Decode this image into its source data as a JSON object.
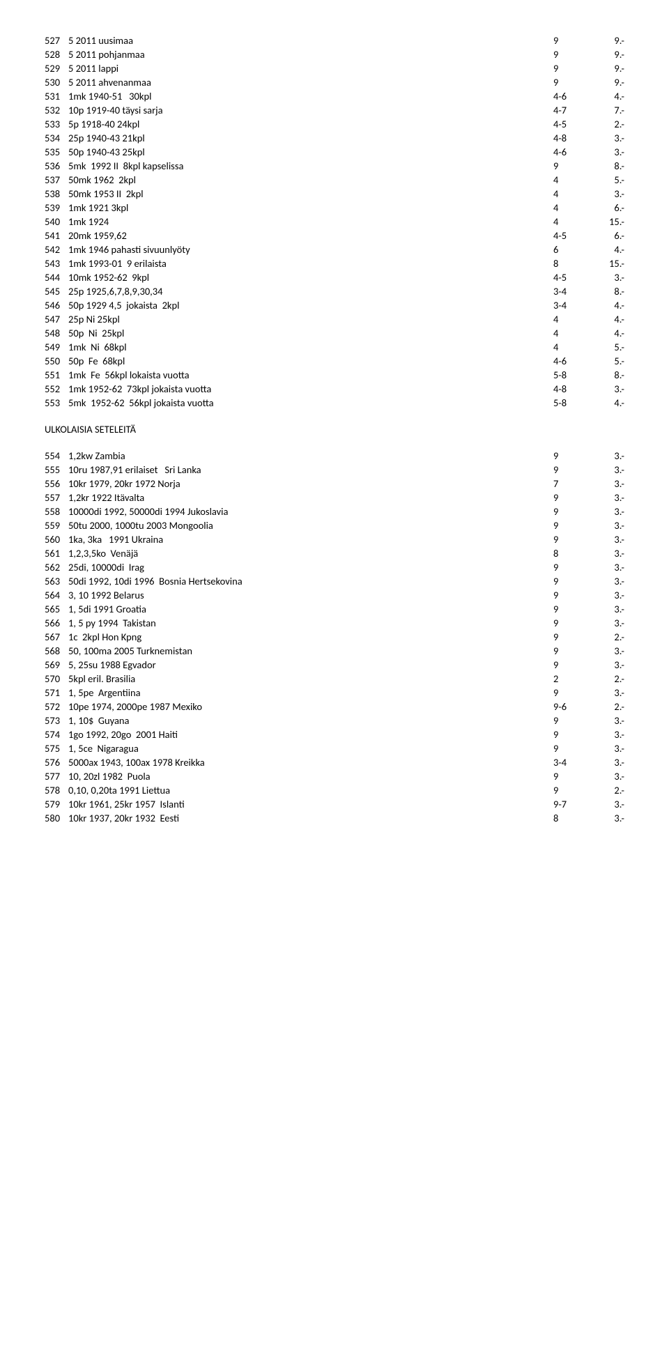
{
  "rows1": [
    {
      "n": "527",
      "d": "5 2011 uusimaa",
      "g": "9",
      "p": "9.-"
    },
    {
      "n": "528",
      "d": "5 2011 pohjanmaa",
      "g": "9",
      "p": "9.-"
    },
    {
      "n": "529",
      "d": "5 2011 lappi",
      "g": "9",
      "p": "9.-"
    },
    {
      "n": "530",
      "d": "5 2011 ahvenanmaa",
      "g": "9",
      "p": "9.-"
    },
    {
      "n": "531",
      "d": "1mk 1940-51   30kpl",
      "g": "4-6",
      "p": "4.-"
    },
    {
      "n": "532",
      "d": "10p 1919-40 täysi sarja",
      "g": "4-7",
      "p": "7.-"
    },
    {
      "n": "533",
      "d": "5p 1918-40 24kpl",
      "g": "4-5",
      "p": "2.-"
    },
    {
      "n": "534",
      "d": "25p 1940-43 21kpl",
      "g": "4-8",
      "p": "3.-"
    },
    {
      "n": "535",
      "d": "50p 1940-43 25kpl",
      "g": "4-6",
      "p": "3.-"
    },
    {
      "n": "536",
      "d": "5mk  1992 II  8kpl kapselissa",
      "g": "9",
      "p": "8.-"
    },
    {
      "n": "537",
      "d": "50mk 1962  2kpl",
      "g": "4",
      "p": "5.-"
    },
    {
      "n": "538",
      "d": "50mk 1953 II  2kpl",
      "g": "4",
      "p": "3.-"
    },
    {
      "n": "539",
      "d": "1mk 1921 3kpl",
      "g": "4",
      "p": "6.-"
    },
    {
      "n": "540",
      "d": "1mk 1924",
      "g": "4",
      "p": "15.-"
    },
    {
      "n": "541",
      "d": "20mk 1959,62",
      "g": "4-5",
      "p": "6.-"
    },
    {
      "n": "542",
      "d": "1mk 1946 pahasti sivuunlyöty",
      "g": "6",
      "p": "4.-"
    },
    {
      "n": "543",
      "d": "1mk 1993-01  9 erilaista",
      "g": "8",
      "p": "15.-"
    },
    {
      "n": "544",
      "d": "10mk 1952-62  9kpl",
      "g": "4-5",
      "p": "3.-"
    },
    {
      "n": "545",
      "d": "25p 1925,6,7,8,9,30,34",
      "g": "3-4",
      "p": "8.-"
    },
    {
      "n": "546",
      "d": "50p 1929 4,5  jokaista  2kpl",
      "g": "3-4",
      "p": "4.-"
    },
    {
      "n": "547",
      "d": "25p Ni 25kpl",
      "g": "4",
      "p": "4.-"
    },
    {
      "n": "548",
      "d": "50p  Ni  25kpl",
      "g": "4",
      "p": "4.-"
    },
    {
      "n": "549",
      "d": "1mk  Ni  68kpl",
      "g": "4",
      "p": "5.-"
    },
    {
      "n": "550",
      "d": "50p  Fe  68kpl",
      "g": "4-6",
      "p": "5.-"
    },
    {
      "n": "551",
      "d": "1mk  Fe  56kpl lokaista vuotta",
      "g": "5-8",
      "p": "8.-"
    },
    {
      "n": "552",
      "d": "1mk 1952-62  73kpl jokaista vuotta",
      "g": "4-8",
      "p": "3.-"
    },
    {
      "n": "553",
      "d": "5mk  1952-62  56kpl jokaista vuotta",
      "g": "5-8",
      "p": "4.-"
    }
  ],
  "sectionTitle": "ULKOLAISIA SETELEITÄ",
  "rows2": [
    {
      "n": "554",
      "d": "1,2kw Zambia",
      "g": "9",
      "p": "3.-"
    },
    {
      "n": "555",
      "d": "10ru 1987,91 erilaiset   Sri Lanka",
      "g": "9",
      "p": "3.-"
    },
    {
      "n": "556",
      "d": "10kr 1979, 20kr 1972 Norja",
      "g": "7",
      "p": "3.-"
    },
    {
      "n": "557",
      "d": "1,2kr 1922 Itävalta",
      "g": "9",
      "p": "3.-"
    },
    {
      "n": "558",
      "d": "10000di 1992, 50000di 1994 Jukoslavia",
      "g": "9",
      "p": "3.-"
    },
    {
      "n": "559",
      "d": "50tu 2000, 1000tu 2003 Mongoolia",
      "g": "9",
      "p": "3.-"
    },
    {
      "n": "560",
      "d": "1ka, 3ka   1991 Ukraina",
      "g": "9",
      "p": "3.-"
    },
    {
      "n": "561",
      "d": "1,2,3,5ko  Venäjä",
      "g": "8",
      "p": "3.-"
    },
    {
      "n": "562",
      "d": "25di, 10000di  Irag",
      "g": "9",
      "p": "3.-"
    },
    {
      "n": "563",
      "d": "50di 1992, 10di 1996  Bosnia Hertsekovina",
      "g": "9",
      "p": "3.-"
    },
    {
      "n": "564",
      "d": "3, 10 1992 Belarus",
      "g": "9",
      "p": "3.-"
    },
    {
      "n": "565",
      "d": "1, 5di 1991 Groatia",
      "g": "9",
      "p": "3.-"
    },
    {
      "n": "566",
      "d": "1, 5 py 1994  Takistan",
      "g": "9",
      "p": "3.-"
    },
    {
      "n": "567",
      "d": "1c  2kpl Hon Kpng",
      "g": "9",
      "p": "2.-"
    },
    {
      "n": "568",
      "d": "50, 100ma 2005 Turknemistan",
      "g": "9",
      "p": "3.-"
    },
    {
      "n": "569",
      "d": "5, 25su 1988 Egvador",
      "g": "9",
      "p": "3.-"
    },
    {
      "n": "570",
      "d": "5kpl eril. Brasilia",
      "g": "2",
      "p": "2.-"
    },
    {
      "n": "571",
      "d": "1, 5pe  Argentiina",
      "g": "9",
      "p": "3.-"
    },
    {
      "n": "572",
      "d": "10pe 1974, 2000pe 1987 Mexiko",
      "g": "9-6",
      "p": "2.-"
    },
    {
      "n": "573",
      "d": "1, 10$  Guyana",
      "g": "9",
      "p": "3.-"
    },
    {
      "n": "574",
      "d": "1go 1992, 20go  2001 Haiti",
      "g": "9",
      "p": "3.-"
    },
    {
      "n": "575",
      "d": "1, 5ce  Nigaragua",
      "g": "9",
      "p": "3.-"
    },
    {
      "n": "576",
      "d": "5000ax 1943, 100ax 1978 Kreikka",
      "g": "3-4",
      "p": "3.-"
    },
    {
      "n": "577",
      "d": "10, 20zl 1982  Puola",
      "g": "9",
      "p": "3.-"
    },
    {
      "n": "578",
      "d": "0,10, 0,20ta 1991 Liettua",
      "g": "9",
      "p": "2.-"
    },
    {
      "n": "579",
      "d": "10kr 1961, 25kr 1957  Islanti",
      "g": "9-7",
      "p": "3.-"
    },
    {
      "n": "580",
      "d": "10kr 1937, 20kr 1932  Eesti",
      "g": "8",
      "p": "3.-"
    }
  ]
}
